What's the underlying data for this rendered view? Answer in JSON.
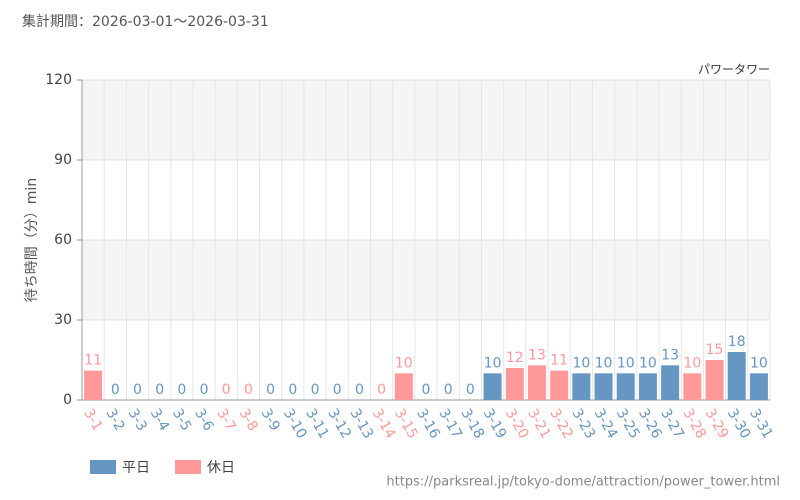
{
  "chart_data": {
    "type": "bar",
    "title": "集計期間：2026-03-01～2026-03-31",
    "subtitle": "パワータワー",
    "y_label": "待ち時間（分）min",
    "source": "https://parksreal.jp/tokyo-dome/attraction/power_tower.html",
    "categories": [
      "3-1",
      "3-2",
      "3-3",
      "3-4",
      "3-5",
      "3-6",
      "3-7",
      "3-8",
      "3-9",
      "3-10",
      "3-11",
      "3-12",
      "3-13",
      "3-14",
      "3-15",
      "3-16",
      "3-17",
      "3-18",
      "3-19",
      "3-20",
      "3-21",
      "3-22",
      "3-23",
      "3-24",
      "3-25",
      "3-26",
      "3-27",
      "3-28",
      "3-29",
      "3-30",
      "3-31"
    ],
    "series": [
      {
        "name": "平日",
        "color": "#6696c2",
        "values": [
          null,
          0,
          0,
          0,
          0,
          0,
          null,
          null,
          0,
          0,
          0,
          0,
          0,
          null,
          null,
          0,
          0,
          0,
          10,
          null,
          null,
          null,
          10,
          10,
          10,
          10,
          13,
          null,
          null,
          18,
          10
        ]
      },
      {
        "name": "休日",
        "color": "#ff9999",
        "values": [
          11,
          null,
          null,
          null,
          null,
          null,
          0,
          0,
          null,
          null,
          null,
          null,
          null,
          0,
          10,
          null,
          null,
          null,
          null,
          12,
          13,
          11,
          null,
          null,
          null,
          null,
          null,
          10,
          15,
          null,
          null
        ]
      }
    ],
    "ylim": [
      0,
      120
    ],
    "yticks": [
      0,
      30,
      60,
      90,
      120
    ],
    "grid": true
  }
}
